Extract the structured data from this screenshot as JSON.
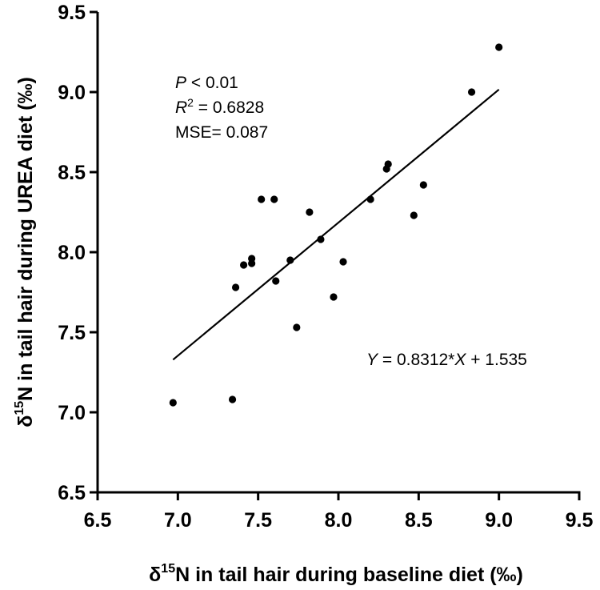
{
  "chart_data": {
    "type": "scatter",
    "xlabel": {
      "prefix": "δ",
      "sup": "15",
      "rest": "N in tail hair during baseline diet (‰)"
    },
    "ylabel": {
      "prefix": "δ",
      "sup": "15",
      "rest": "N in tail hair during UREA diet (‰)"
    },
    "xlim": [
      6.5,
      9.5
    ],
    "ylim": [
      6.5,
      9.5
    ],
    "xticks": [
      "6.5",
      "7.0",
      "7.5",
      "8.0",
      "8.5",
      "9.0",
      "9.5"
    ],
    "yticks": [
      "6.5",
      "7.0",
      "7.5",
      "8.0",
      "8.5",
      "9.0",
      "9.5"
    ],
    "grid": false,
    "points": [
      {
        "x": 6.97,
        "y": 7.06
      },
      {
        "x": 7.34,
        "y": 7.08
      },
      {
        "x": 7.36,
        "y": 7.78
      },
      {
        "x": 7.41,
        "y": 7.92
      },
      {
        "x": 7.46,
        "y": 7.96
      },
      {
        "x": 7.46,
        "y": 7.93
      },
      {
        "x": 7.52,
        "y": 8.33
      },
      {
        "x": 7.6,
        "y": 8.33
      },
      {
        "x": 7.61,
        "y": 7.82
      },
      {
        "x": 7.7,
        "y": 7.95
      },
      {
        "x": 7.74,
        "y": 7.53
      },
      {
        "x": 7.82,
        "y": 8.25
      },
      {
        "x": 7.89,
        "y": 8.08
      },
      {
        "x": 7.97,
        "y": 7.72
      },
      {
        "x": 8.03,
        "y": 7.94
      },
      {
        "x": 8.2,
        "y": 8.33
      },
      {
        "x": 8.3,
        "y": 8.52
      },
      {
        "x": 8.31,
        "y": 8.55
      },
      {
        "x": 8.47,
        "y": 8.23
      },
      {
        "x": 8.53,
        "y": 8.42
      },
      {
        "x": 8.83,
        "y": 9.0
      },
      {
        "x": 9.0,
        "y": 9.28
      }
    ],
    "fit_line": {
      "slope": 0.8312,
      "intercept": 1.535,
      "x_range": [
        6.97,
        9.0
      ]
    },
    "annotations": {
      "p_var": "P",
      "p_rest": " < 0.01",
      "r2_var": "R",
      "r2_sup": "2",
      "r2_rest": " = 0.6828",
      "mse": "MSE= 0.087",
      "eq_y": "Y",
      "eq_mid": " = 0.8312*",
      "eq_x": "X",
      "eq_rest": " + 1.535"
    }
  }
}
